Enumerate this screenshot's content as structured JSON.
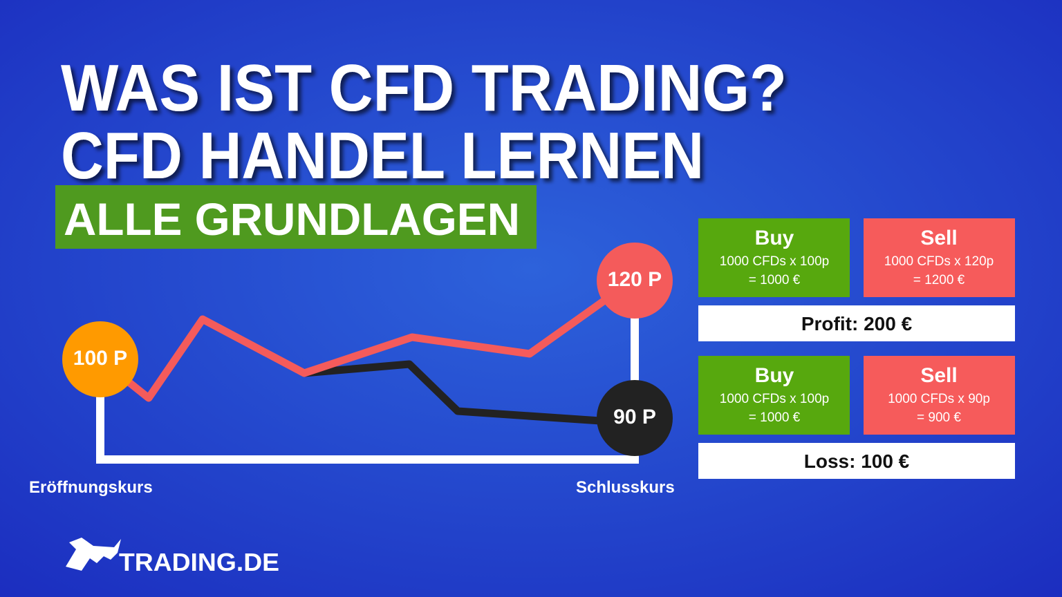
{
  "header": {
    "title_lines": [
      "WAS IST CFD TRADING?",
      "CFD HANDEL LERNEN"
    ],
    "badge": "ALLE GRUNDLAGEN"
  },
  "diagram": {
    "start_label": "100 P",
    "high_label": "120 P",
    "low_label": "90 P",
    "open_caption": "Eröffnungskurs",
    "close_caption": "Schlusskurs"
  },
  "examples": [
    {
      "buy": {
        "title": "Buy",
        "lines": [
          "1000 CFDs x 100p",
          "= 1000 €"
        ]
      },
      "sell": {
        "title": "Sell",
        "lines": [
          "1000 CFDs x 120p",
          "= 1200 €"
        ]
      },
      "result": "Profit: 200 €"
    },
    {
      "buy": {
        "title": "Buy",
        "lines": [
          "1000 CFDs x 100p",
          "= 1000 €"
        ]
      },
      "sell": {
        "title": "Sell",
        "lines": [
          "1000 CFDs x 90p",
          "= 900 €"
        ]
      },
      "result": "Loss: 100 €"
    }
  ],
  "logo": {
    "text": "TRADING.DE"
  }
}
